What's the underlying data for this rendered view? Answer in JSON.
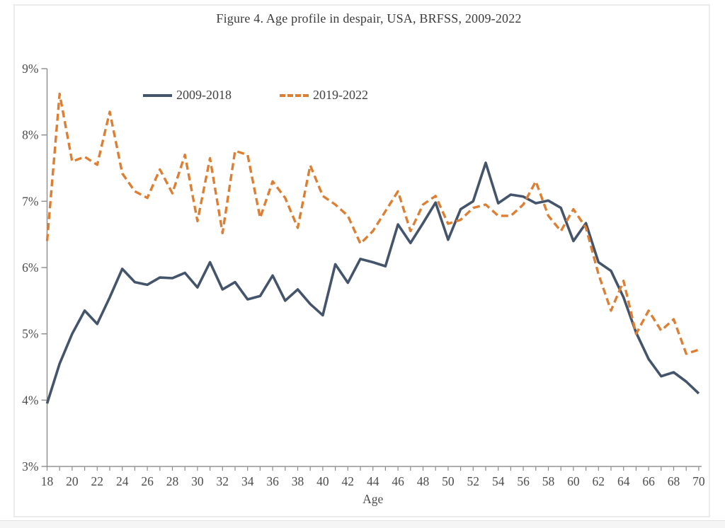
{
  "figure": {
    "title": "Figure 4. Age profile in despair, USA, BRFSS, 2009-2022"
  },
  "colors": {
    "series_2009_2018": "#44546A",
    "series_2019_2022": "#DD7E32",
    "axis": "#8c8c8c",
    "tick_text": "#4d4d4d",
    "panel_border": "#ebebeb"
  },
  "chart_data": {
    "type": "line",
    "xlabel": "Age",
    "ylabel": "",
    "xlim": [
      18,
      70
    ],
    "ylim": [
      3,
      9
    ],
    "grid": false,
    "legend_position": "top-left-inside",
    "y_ticks": [
      {
        "value": 9,
        "label": "9%"
      },
      {
        "value": 8,
        "label": "8%"
      },
      {
        "value": 7,
        "label": "7%"
      },
      {
        "value": 6,
        "label": "6%"
      },
      {
        "value": 5,
        "label": "5%"
      },
      {
        "value": 4,
        "label": "4%"
      },
      {
        "value": 3,
        "label": "3%"
      }
    ],
    "x_tick_step_minor": 1,
    "x_tick_labels": [
      18,
      20,
      22,
      24,
      26,
      28,
      30,
      32,
      34,
      36,
      38,
      40,
      42,
      44,
      46,
      48,
      50,
      52,
      54,
      56,
      58,
      60,
      62,
      64,
      66,
      68,
      70
    ],
    "x": [
      18,
      19,
      20,
      21,
      22,
      23,
      24,
      25,
      26,
      27,
      28,
      29,
      30,
      31,
      32,
      33,
      34,
      35,
      36,
      37,
      38,
      39,
      40,
      41,
      42,
      43,
      44,
      45,
      46,
      47,
      48,
      49,
      50,
      51,
      52,
      53,
      54,
      55,
      56,
      57,
      58,
      59,
      60,
      61,
      62,
      63,
      64,
      65,
      66,
      67,
      68,
      69,
      70
    ],
    "series": [
      {
        "name": "2009-2018",
        "style": "solid",
        "color": "#44546A",
        "values": [
          3.95,
          4.55,
          5.0,
          5.35,
          5.15,
          5.55,
          5.98,
          5.78,
          5.74,
          5.85,
          5.84,
          5.92,
          5.7,
          6.08,
          5.67,
          5.78,
          5.52,
          5.57,
          5.88,
          5.5,
          5.67,
          5.45,
          5.28,
          6.05,
          5.77,
          6.13,
          6.08,
          6.02,
          6.65,
          6.37,
          6.67,
          6.98,
          6.42,
          6.88,
          7.0,
          7.58,
          6.97,
          7.1,
          7.07,
          6.97,
          7.01,
          6.9,
          6.4,
          6.67,
          6.08,
          5.95,
          5.55,
          5.02,
          4.62,
          4.36,
          4.42,
          4.28,
          4.1
        ]
      },
      {
        "name": "2019-2022",
        "style": "dashed",
        "color": "#DD7E32",
        "values": [
          6.4,
          8.62,
          7.6,
          7.67,
          7.55,
          8.35,
          7.42,
          7.15,
          7.05,
          7.48,
          7.12,
          7.7,
          6.7,
          7.65,
          6.52,
          7.76,
          7.7,
          6.75,
          7.3,
          7.05,
          6.6,
          7.54,
          7.08,
          6.95,
          6.78,
          6.36,
          6.55,
          6.85,
          7.15,
          6.55,
          6.95,
          7.08,
          6.66,
          6.72,
          6.9,
          6.95,
          6.78,
          6.78,
          6.95,
          7.3,
          6.78,
          6.55,
          6.88,
          6.6,
          5.9,
          5.35,
          5.8,
          5.0,
          5.35,
          5.05,
          5.22,
          4.7,
          4.76
        ]
      }
    ]
  }
}
